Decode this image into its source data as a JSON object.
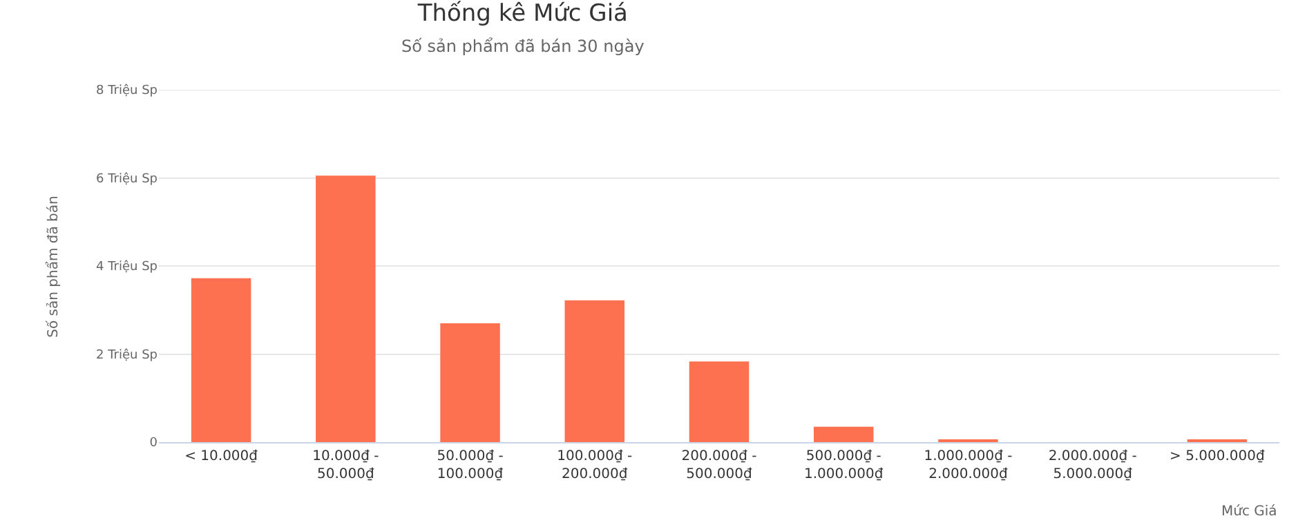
{
  "chart_data": {
    "type": "bar",
    "title": "Thống kê Mức Giá",
    "subtitle": "Số sản phẩm đã bán 30 ngày",
    "xlabel": "Mức Giá",
    "ylabel": "Số sản phẩm đã bán",
    "categories": [
      "< 10.000₫",
      "10.000₫ -\n50.000₫",
      "50.000₫ -\n100.000₫",
      "100.000₫ -\n200.000₫",
      "200.000₫ -\n500.000₫",
      "500.000₫ -\n1.000.000₫",
      "1.000.000₫ -\n2.000.000₫",
      "2.000.000₫ -\n5.000.000₫",
      "> 5.000.000₫"
    ],
    "series": [
      {
        "color": "#fe7150",
        "values": [
          3.72,
          6.05,
          2.7,
          3.22,
          1.83,
          0.35,
          0.06,
          0,
          0.06
        ]
      }
    ],
    "ylim": [
      0,
      8
    ],
    "yticks": [
      0,
      {
        "value": 2,
        "label": "2 Triệu Sp"
      },
      {
        "value": 4,
        "label": "4 Triệu Sp"
      },
      {
        "value": 6,
        "label": "6 Triệu Sp"
      },
      {
        "value": 8,
        "label": "8 Triệu Sp"
      }
    ],
    "grid": "y",
    "legend": false
  }
}
